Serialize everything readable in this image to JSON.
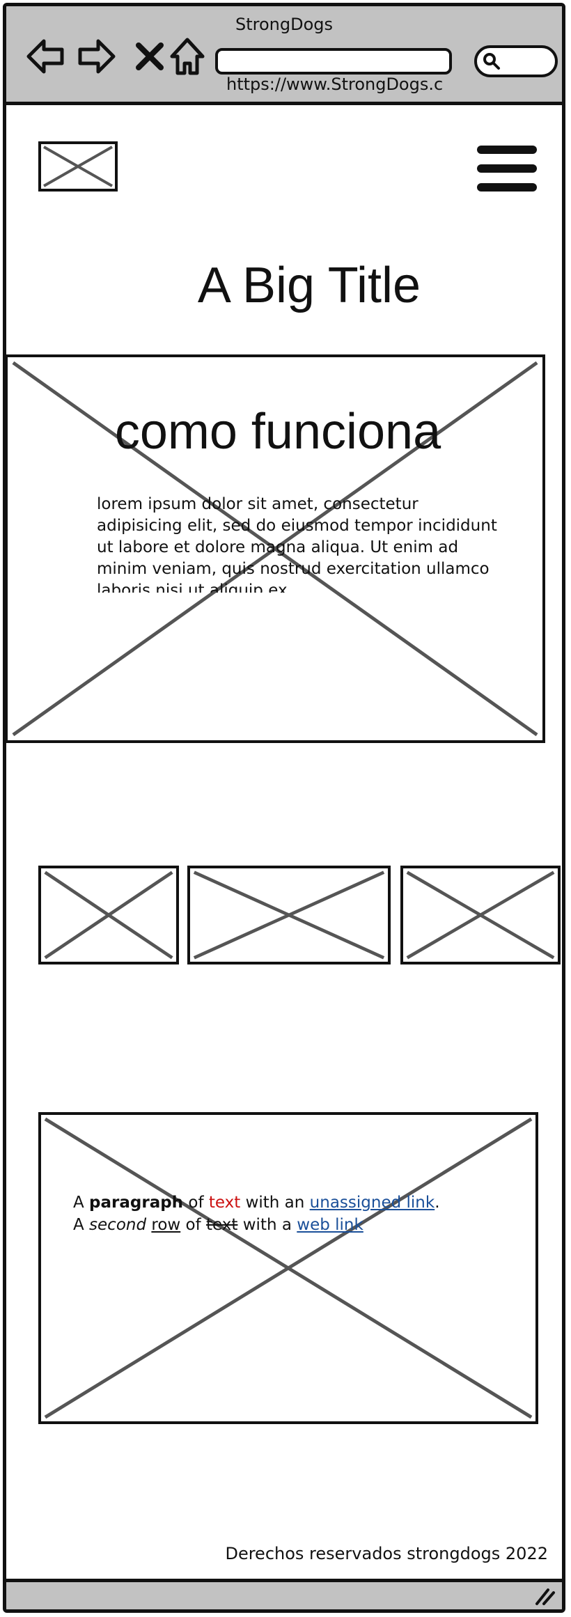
{
  "browser": {
    "title": "StrongDogs",
    "url": "https://www.StrongDogs.c",
    "icons": [
      "back-arrow-icon",
      "forward-arrow-icon",
      "close-icon",
      "home-icon",
      "search-icon"
    ]
  },
  "header": {
    "logo_icon": "image-placeholder-icon",
    "menu_icon": "hamburger-menu-icon"
  },
  "page": {
    "title": "A Big Title"
  },
  "hero": {
    "heading": "como funciona",
    "body": "lorem ipsum dolor sit amet, consectetur adipisicing elit, sed do eiusmod tempor incididunt ut labore et dolore magna aliqua. Ut enim ad minim veniam, quis nostrud exercitation ullamco laboris nisi ut aliquip ex"
  },
  "paragraph": {
    "line1": {
      "a": "A ",
      "bold": "paragraph",
      "of": " of ",
      "red": "text",
      "with": " with an ",
      "link": "unassigned link",
      "end": "."
    },
    "line2": {
      "a": "A ",
      "italic": "second",
      "sp": " ",
      "underline": "row",
      "of": " of ",
      "strike": "text",
      "with": " with a ",
      "link": "web link"
    },
    "colors": {
      "red": "#cc1111",
      "link": "#1a4f99"
    }
  },
  "footer": {
    "text": "Derechos reservados strongdogs 2022"
  }
}
